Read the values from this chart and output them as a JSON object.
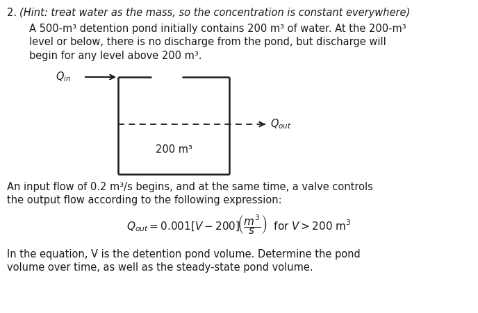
{
  "title_num": "2. ",
  "title_hint": "(Hint: treat water as the mass, so the concentration is constant everywhere)",
  "para1_line1": "A 500-m³ detention pond initially contains 200 m³ of water. At the 200-m³",
  "para1_line2": "level or below, there is no discharge from the pond, but discharge will",
  "para1_line3": "begin for any level above 200 m³.",
  "para2_line1": "An input flow of 0.2 m³/s begins, and at the same time, a valve controls",
  "para2_line2": "the output flow according to the following expression:",
  "para3_line1": "In the equation, V is the detention pond volume. Determine the pond",
  "para3_line2": "volume over time, as well as the steady-state pond volume.",
  "label_200": "200 m³",
  "background_color": "#ffffff",
  "text_color": "#1a1a1a",
  "box_color": "#1a1a1a",
  "dash_color": "#1a1a1a",
  "fs_title": 10.5,
  "fs_body": 10.5
}
